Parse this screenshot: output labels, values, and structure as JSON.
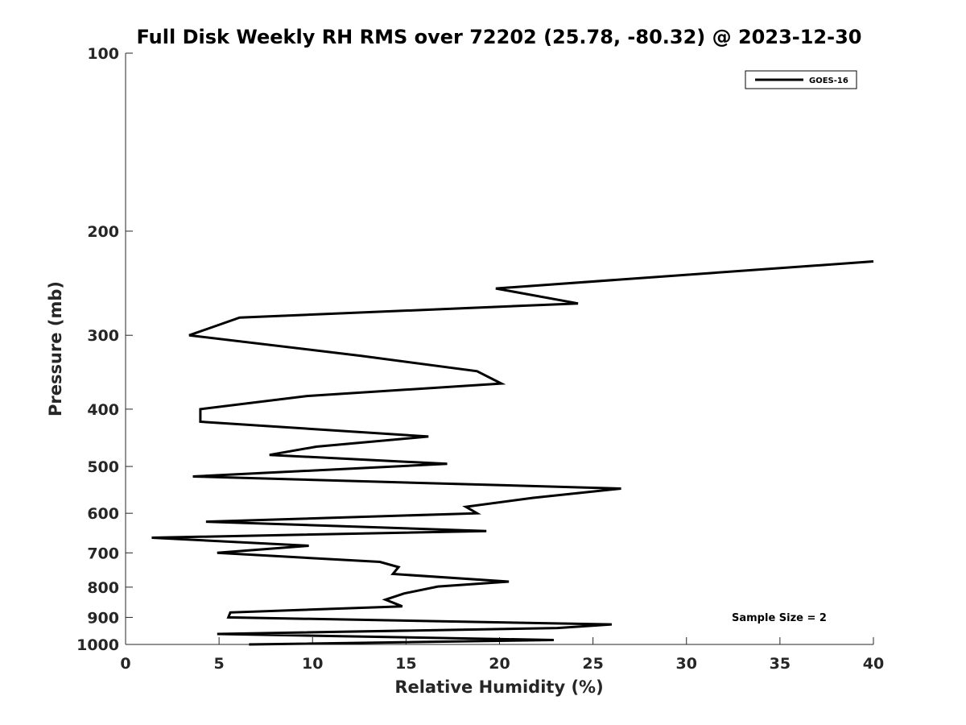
{
  "chart_data": {
    "type": "line",
    "title": "Full Disk Weekly RH RMS over 72202 (25.78, -80.32) @ 2023-12-30",
    "xlabel": "Relative Humidity (%)",
    "ylabel": "Pressure (mb)",
    "xlim": [
      0,
      40
    ],
    "ylim": [
      100,
      1000
    ],
    "yscale": "log",
    "y_reversed": true,
    "grid": false,
    "legend_position": "top-right",
    "x_ticks": [
      0,
      5,
      10,
      15,
      20,
      25,
      30,
      35,
      40
    ],
    "x_tick_labels": [
      "0",
      "5",
      "10",
      "15",
      "20",
      "25",
      "30",
      "35",
      "40"
    ],
    "y_ticks": [
      100,
      200,
      300,
      400,
      500,
      600,
      700,
      800,
      900,
      1000
    ],
    "y_tick_labels": [
      "100",
      "200",
      "300",
      "400",
      "500",
      "600",
      "700",
      "800",
      "900",
      "1000"
    ],
    "annotation": "Sample Size = 2",
    "series": [
      {
        "name": "GOES-16",
        "color": "#000000",
        "x": [
          40.0,
          19.8,
          24.2,
          6.1,
          3.4,
          12.6,
          18.8,
          20.1,
          9.7,
          4.0,
          4.0,
          16.2,
          10.2,
          7.7,
          17.2,
          3.6,
          26.5,
          21.8,
          18.2,
          18.8,
          4.3,
          19.3,
          1.4,
          9.8,
          4.9,
          13.6,
          14.6,
          14.3,
          20.5,
          16.7,
          14.9,
          13.9,
          14.8,
          5.6,
          5.5,
          26.0,
          23.1,
          4.9,
          22.9,
          6.6
        ],
        "y": [
          225,
          250,
          265,
          280,
          300,
          325,
          345,
          362,
          380,
          400,
          420,
          445,
          463,
          478,
          495,
          520,
          545,
          565,
          585,
          600,
          620,
          643,
          660,
          681,
          700,
          725,
          740,
          760,
          783,
          798,
          820,
          840,
          862,
          883,
          900,
          925,
          938,
          960,
          983,
          1000
        ]
      }
    ]
  }
}
